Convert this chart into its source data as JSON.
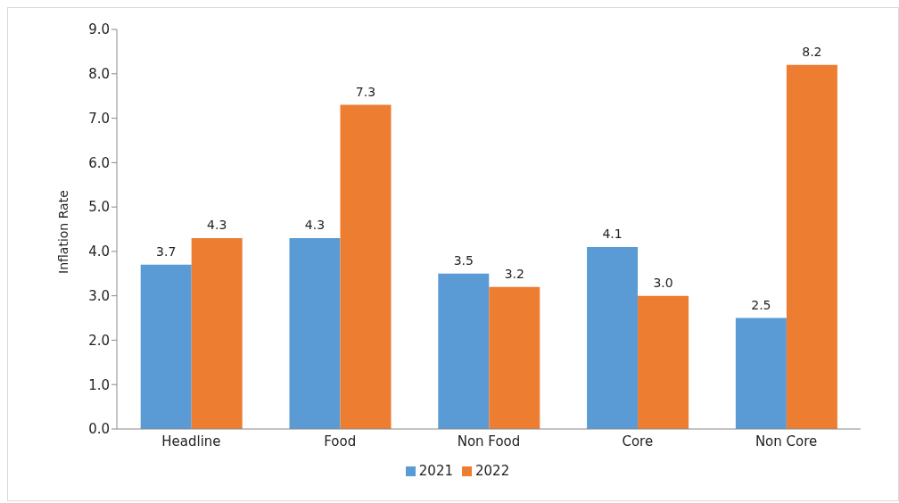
{
  "chart_data": {
    "type": "bar",
    "ylabel": "Inflation Rate",
    "categories": [
      "Headline",
      "Food",
      "Non Food",
      "Core",
      "Non Core"
    ],
    "series": [
      {
        "name": "2021",
        "color": "#5b9bd5",
        "values": [
          3.7,
          4.3,
          3.5,
          4.1,
          2.5
        ],
        "value_labels": [
          "3.7",
          "4.3",
          "3.5",
          "4.1",
          "2.5"
        ]
      },
      {
        "name": "2022",
        "color": "#ed7d31",
        "values": [
          4.3,
          7.3,
          3.2,
          3.0,
          8.2
        ],
        "value_labels": [
          "4.3",
          "7.3",
          "3.2",
          "3.0",
          "8.2"
        ]
      }
    ],
    "ylim": [
      0,
      9
    ],
    "yticks": [
      {
        "value": 0,
        "label": "0.0"
      },
      {
        "value": 1,
        "label": "1.0"
      },
      {
        "value": 2,
        "label": "2.0"
      },
      {
        "value": 3,
        "label": "3.0"
      },
      {
        "value": 4,
        "label": "4.0"
      },
      {
        "value": 5,
        "label": "5.0"
      },
      {
        "value": 6,
        "label": "6.0"
      },
      {
        "value": 7,
        "label": "7.0"
      },
      {
        "value": 8,
        "label": "8.0"
      },
      {
        "value": 9,
        "label": "9.0"
      }
    ],
    "legend": "bottom"
  }
}
